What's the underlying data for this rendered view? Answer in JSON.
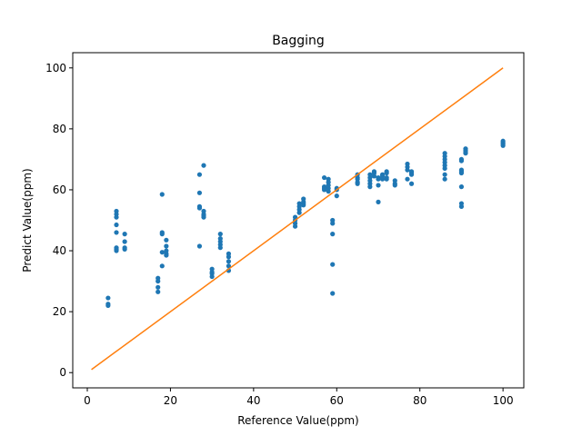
{
  "chart_data": {
    "type": "scatter",
    "title": "Bagging",
    "xlabel": "Reference Value(ppm)",
    "ylabel": "Predict Value(ppm)",
    "xlim": [
      -3.5,
      105
    ],
    "ylim": [
      -5,
      105
    ],
    "xticks": [
      0,
      20,
      40,
      60,
      80,
      100
    ],
    "yticks": [
      0,
      20,
      40,
      60,
      80,
      100
    ],
    "grid": false,
    "colors": {
      "scatter": "#1f77b4",
      "line": "#ff7f0e"
    },
    "series": [
      {
        "kind": "scatter",
        "points": [
          [
            5,
            24.5
          ],
          [
            5,
            22.5
          ],
          [
            5,
            22
          ],
          [
            7,
            53
          ],
          [
            7,
            52
          ],
          [
            7,
            51
          ],
          [
            7,
            48.5
          ],
          [
            7,
            46
          ],
          [
            7,
            41
          ],
          [
            7,
            40.5
          ],
          [
            7,
            40
          ],
          [
            9,
            45.5
          ],
          [
            9,
            43
          ],
          [
            9,
            41
          ],
          [
            9,
            40.5
          ],
          [
            17,
            31
          ],
          [
            17,
            30
          ],
          [
            17,
            28
          ],
          [
            17,
            26.5
          ],
          [
            18,
            58.5
          ],
          [
            18,
            46
          ],
          [
            18,
            45.5
          ],
          [
            18,
            39.5
          ],
          [
            18,
            35
          ],
          [
            19,
            43.5
          ],
          [
            19,
            41.5
          ],
          [
            19,
            40
          ],
          [
            19,
            39
          ],
          [
            19,
            38.5
          ],
          [
            27,
            65
          ],
          [
            27,
            59
          ],
          [
            27,
            54.5
          ],
          [
            27,
            54
          ],
          [
            27,
            41.5
          ],
          [
            28,
            68
          ],
          [
            28,
            53
          ],
          [
            28,
            52
          ],
          [
            28,
            51.5
          ],
          [
            28,
            51
          ],
          [
            30,
            34
          ],
          [
            30,
            33
          ],
          [
            30,
            32.5
          ],
          [
            30,
            31.5
          ],
          [
            32,
            45.5
          ],
          [
            32,
            44
          ],
          [
            32,
            43
          ],
          [
            32,
            42
          ],
          [
            32,
            41
          ],
          [
            34,
            39
          ],
          [
            34,
            38
          ],
          [
            34,
            36.5
          ],
          [
            34,
            35
          ],
          [
            34,
            33.5
          ],
          [
            50,
            51
          ],
          [
            50,
            50
          ],
          [
            50,
            49
          ],
          [
            50,
            48
          ],
          [
            51,
            55.5
          ],
          [
            51,
            54.5
          ],
          [
            51,
            53.5
          ],
          [
            51,
            52.5
          ],
          [
            52,
            57
          ],
          [
            52,
            56
          ],
          [
            52,
            55.5
          ],
          [
            52,
            55
          ],
          [
            57,
            64
          ],
          [
            57,
            61
          ],
          [
            57,
            60.5
          ],
          [
            57,
            60
          ],
          [
            58,
            63.5
          ],
          [
            58,
            62.5
          ],
          [
            58,
            61.5
          ],
          [
            58,
            60.5
          ],
          [
            58,
            59.5
          ],
          [
            59,
            50
          ],
          [
            59,
            49
          ],
          [
            59,
            45.5
          ],
          [
            59,
            35.5
          ],
          [
            59,
            26
          ],
          [
            60,
            60.5
          ],
          [
            60,
            60
          ],
          [
            60,
            58
          ],
          [
            65,
            65
          ],
          [
            65,
            64
          ],
          [
            65,
            63.5
          ],
          [
            65,
            62.5
          ],
          [
            65,
            62
          ],
          [
            68,
            65
          ],
          [
            68,
            64
          ],
          [
            68,
            63
          ],
          [
            68,
            62
          ],
          [
            68,
            61
          ],
          [
            69,
            66
          ],
          [
            69,
            65.5
          ],
          [
            69,
            64.5
          ],
          [
            70,
            64
          ],
          [
            70,
            63.5
          ],
          [
            70,
            61.5
          ],
          [
            70,
            56
          ],
          [
            71,
            65
          ],
          [
            71,
            64.5
          ],
          [
            71,
            63.5
          ],
          [
            72,
            66
          ],
          [
            72,
            65.5
          ],
          [
            72,
            64
          ],
          [
            72,
            63.5
          ],
          [
            74,
            63
          ],
          [
            74,
            62
          ],
          [
            74,
            61.5
          ],
          [
            77,
            68.5
          ],
          [
            77,
            67.5
          ],
          [
            77,
            66.5
          ],
          [
            77,
            63.5
          ],
          [
            78,
            66
          ],
          [
            78,
            65.5
          ],
          [
            78,
            65
          ],
          [
            78,
            62
          ],
          [
            86,
            72
          ],
          [
            86,
            71
          ],
          [
            86,
            70
          ],
          [
            86,
            69
          ],
          [
            86,
            68
          ],
          [
            86,
            67
          ],
          [
            86,
            65
          ],
          [
            86,
            63.5
          ],
          [
            90,
            70
          ],
          [
            90,
            69.5
          ],
          [
            90,
            66.5
          ],
          [
            90,
            66
          ],
          [
            90,
            65.5
          ],
          [
            90,
            61
          ],
          [
            90,
            55.5
          ],
          [
            90,
            54.5
          ],
          [
            91,
            73.5
          ],
          [
            91,
            73
          ],
          [
            91,
            72.5
          ],
          [
            91,
            72
          ],
          [
            100,
            76
          ],
          [
            100,
            75.5
          ],
          [
            100,
            75
          ],
          [
            100,
            74.5
          ]
        ]
      },
      {
        "kind": "line",
        "points": [
          [
            1,
            1
          ],
          [
            100,
            100
          ]
        ]
      }
    ]
  }
}
